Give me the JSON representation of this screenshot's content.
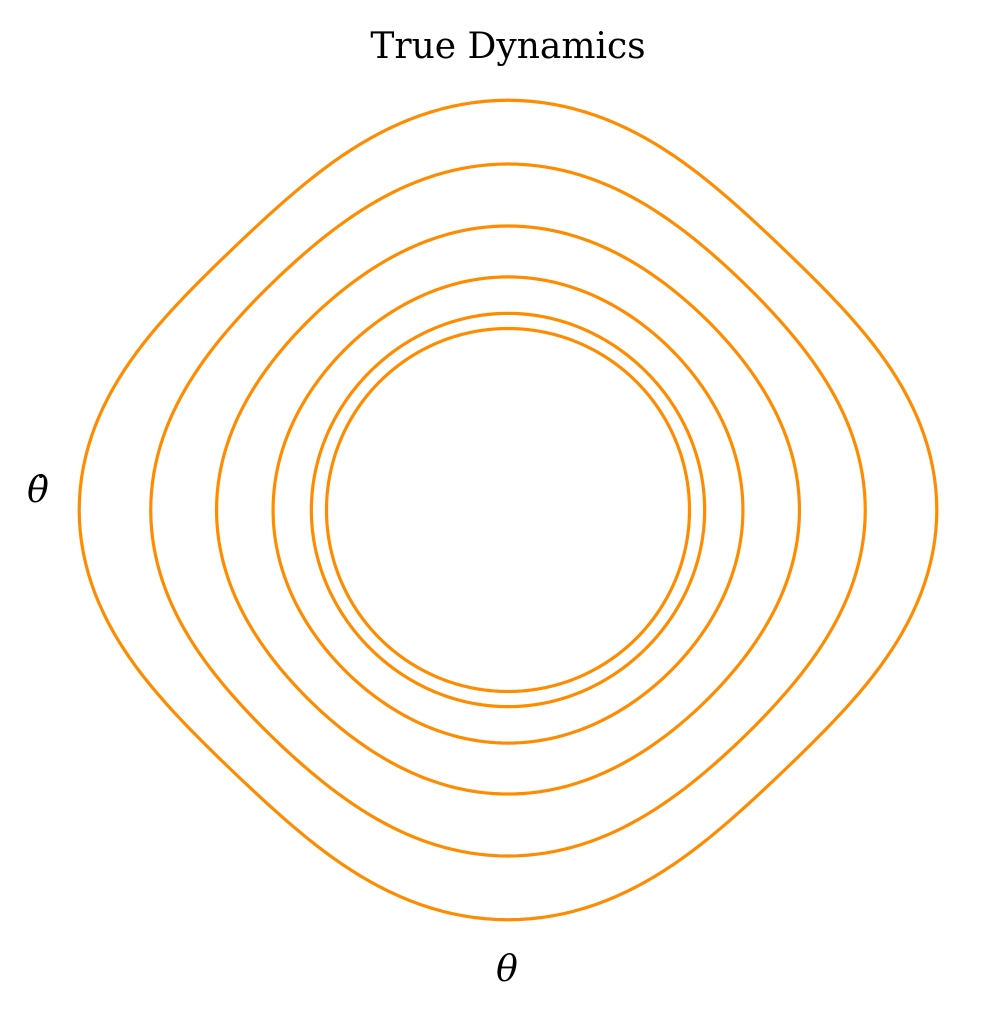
{
  "chart_data": {
    "type": "line",
    "title": "True Dynamics",
    "xlabel": "θ",
    "ylabel": "θ̇",
    "axes_visible": false,
    "grid": false,
    "legend": "none",
    "color": "#ff8c00",
    "curve_kind": "closed phase-space orbits (pendulum)",
    "orbits": [
      {
        "theta_amplitude": 1.0,
        "thetadot_amplitude": 1.0
      },
      {
        "theta_amplitude": 1.08,
        "thetadot_amplitude": 1.08
      },
      {
        "theta_amplitude": 1.28,
        "thetadot_amplitude": 1.27
      },
      {
        "theta_amplitude": 1.57,
        "thetadot_amplitude": 1.53
      },
      {
        "theta_amplitude": 1.9,
        "thetadot_amplitude": 1.84
      },
      {
        "theta_amplitude": 2.25,
        "thetadot_amplitude": 2.15
      }
    ]
  }
}
